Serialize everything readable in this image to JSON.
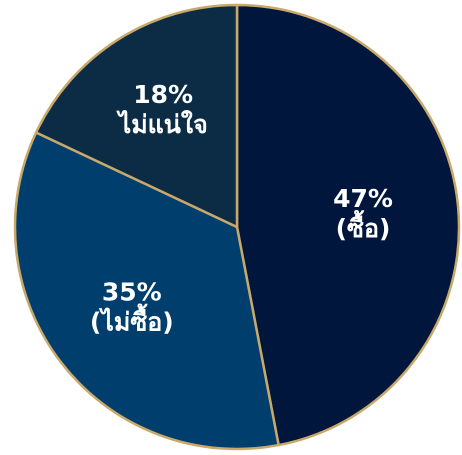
{
  "chart_data": {
    "type": "pie",
    "slices": [
      {
        "value": 47,
        "pct_text": "47%",
        "label": "(ซื้อ)",
        "color": "#00163d"
      },
      {
        "value": 35,
        "pct_text": "35%",
        "label": "(ไม่ซื้อ)",
        "color": "#003f6d"
      },
      {
        "value": 18,
        "pct_text": "18%",
        "label": "ไม่แน่ใจ",
        "color": "#0c2b45"
      }
    ],
    "border_color": "#c8a96a",
    "start": "12 o'clock",
    "direction": "clockwise"
  }
}
